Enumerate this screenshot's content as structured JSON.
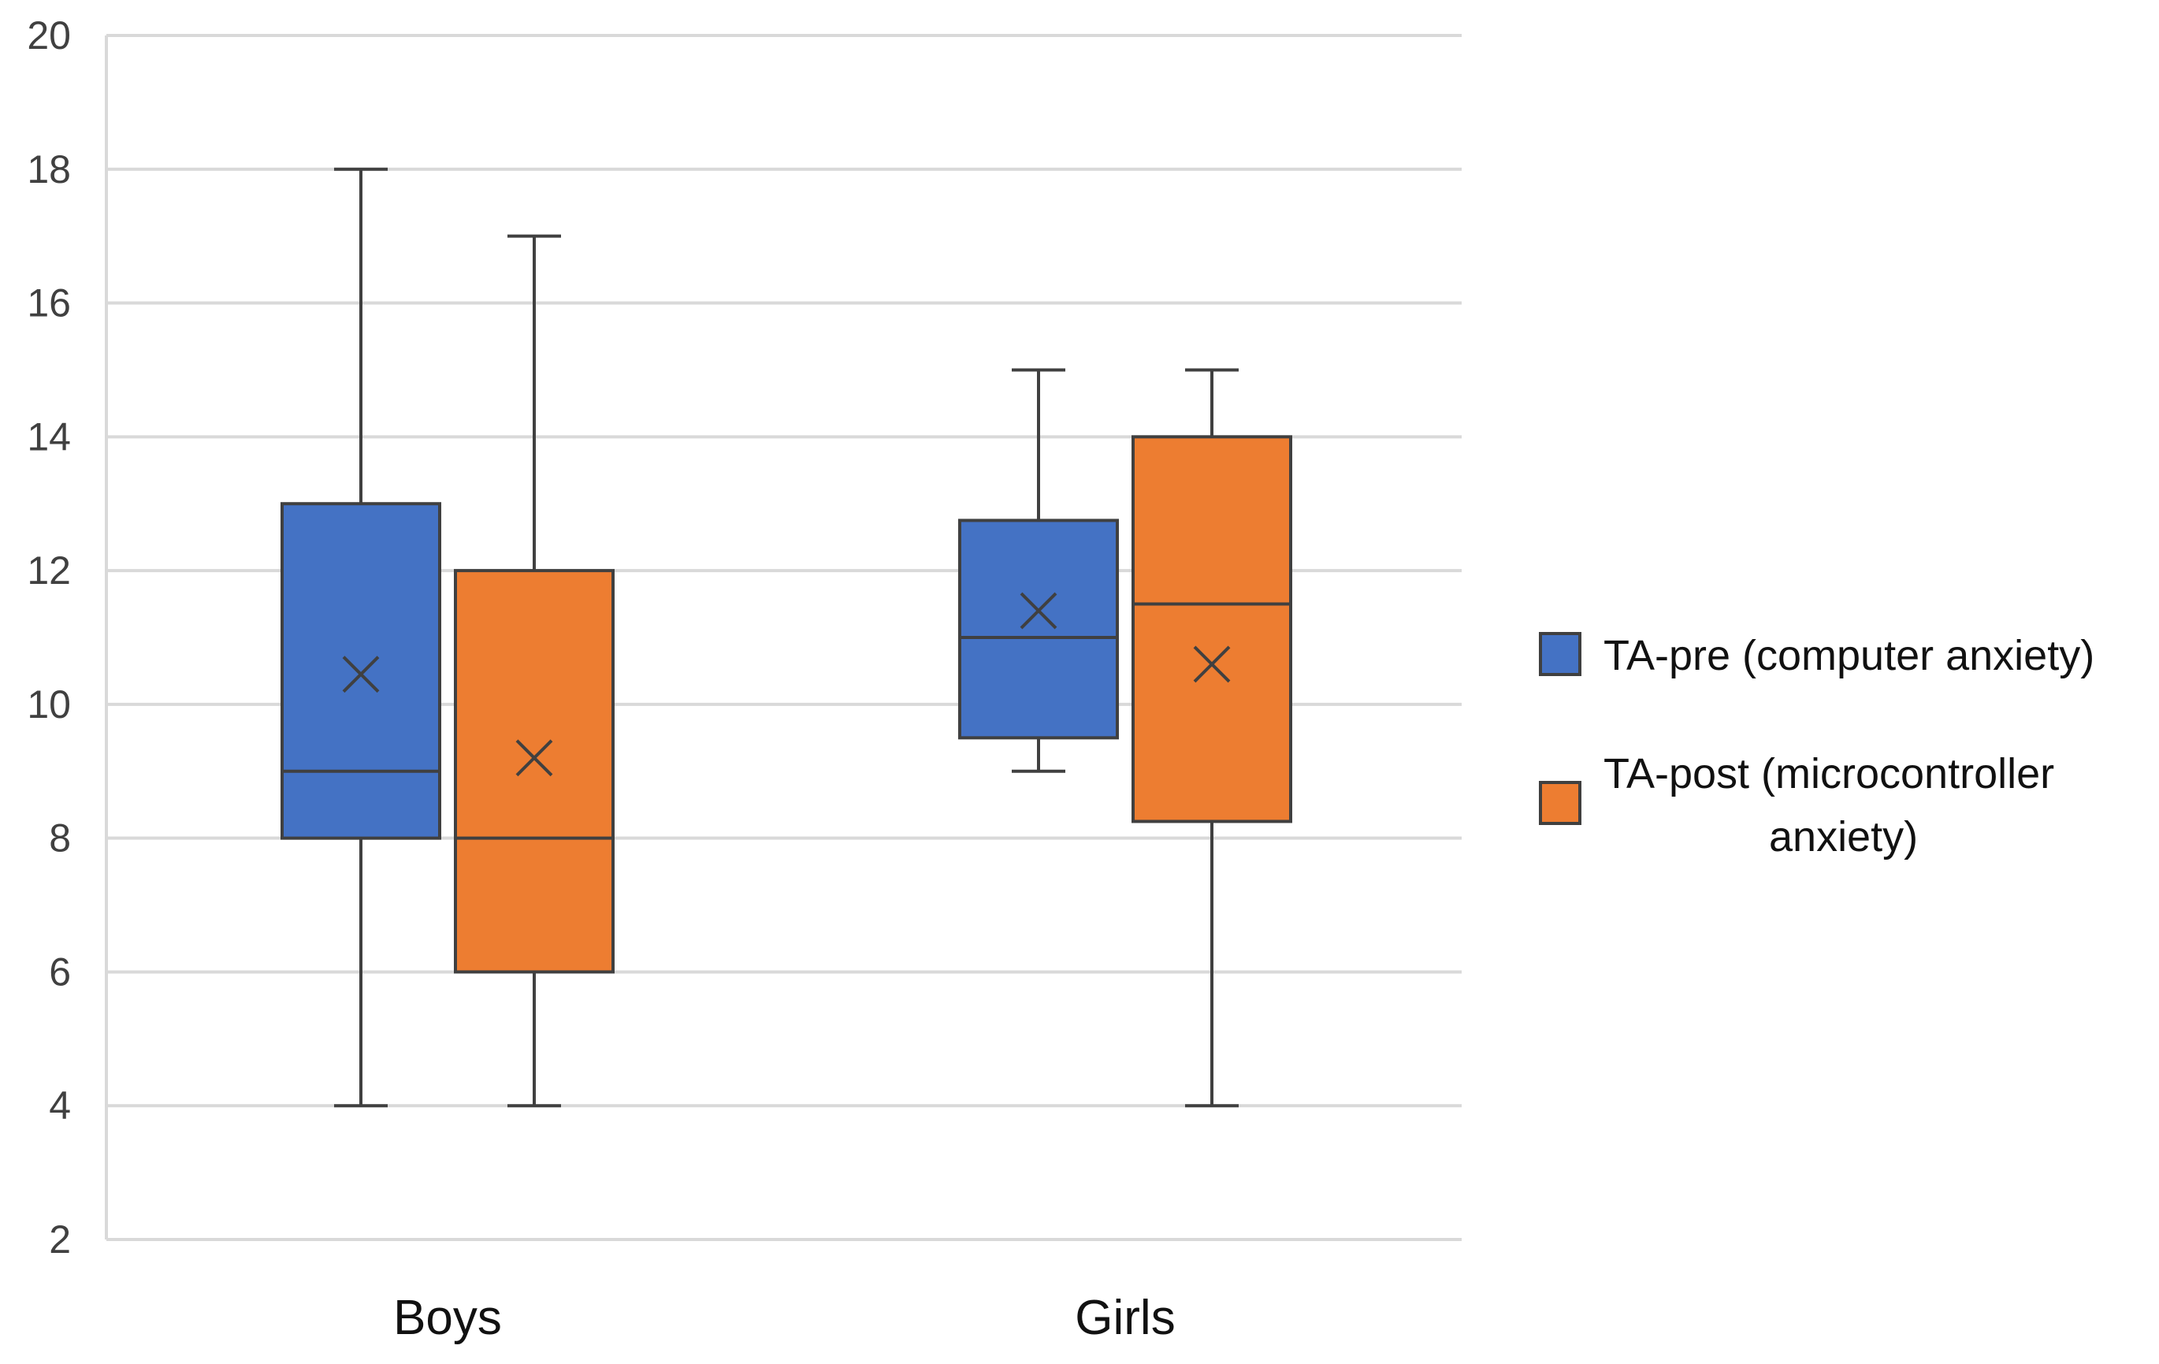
{
  "chart_data": {
    "type": "boxplot",
    "title": "",
    "xlabel": "",
    "ylabel": "",
    "ylim": [
      2,
      20
    ],
    "yticks": [
      2,
      4,
      6,
      8,
      10,
      12,
      14,
      16,
      18,
      20
    ],
    "grid": true,
    "legend_position": "right",
    "categories": [
      "Boys",
      "Girls"
    ],
    "series": [
      {
        "name": "TA-pre (computer anxiety)",
        "color": "#4472C4",
        "boxes": [
          {
            "category": "Boys",
            "min": 4,
            "q1": 8,
            "median": 9,
            "q3": 13,
            "max": 18,
            "mean": 10.45
          },
          {
            "category": "Girls",
            "min": 9,
            "q1": 9.5,
            "median": 11,
            "q3": 12.75,
            "max": 15,
            "mean": 11.4
          }
        ]
      },
      {
        "name": "TA-post (microcontroller anxiety)",
        "color": "#ED7D31",
        "boxes": [
          {
            "category": "Boys",
            "min": 4,
            "q1": 6,
            "median": 8,
            "q3": 12,
            "max": 17,
            "mean": 9.2
          },
          {
            "category": "Girls",
            "min": 4,
            "q1": 8.25,
            "median": 11.5,
            "q3": 14,
            "max": 15,
            "mean": 10.6
          }
        ]
      }
    ],
    "legend": {
      "pre_line1": "TA-pre (computer anxiety)",
      "post_line1": "TA-post (microcontroller",
      "post_line2": "anxiety)"
    }
  },
  "colors": {
    "grid": "#D9D9D9",
    "outline": "#404040",
    "tick_text": "#404040"
  }
}
